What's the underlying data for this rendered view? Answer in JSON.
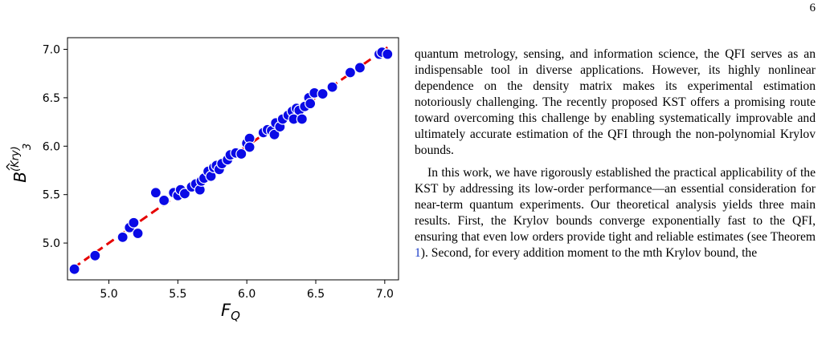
{
  "page": {
    "number": "6"
  },
  "figure": {
    "xlabel": "F",
    "xlabel_sub": "Q",
    "ylabel": "B",
    "ylabel_sub": "3",
    "ylabel_sup": "(Kry)"
  },
  "chart_data": {
    "type": "scatter",
    "title": "",
    "xlabel": "F_Q",
    "ylabel": "B̂_3^(Kry)",
    "xlim": [
      4.7,
      7.1
    ],
    "ylim": [
      4.62,
      7.12
    ],
    "xticks": [
      "5.0",
      "5.5",
      "6.0",
      "6.5",
      "7.0"
    ],
    "yticks": [
      "5.0",
      "5.5",
      "6.0",
      "6.5",
      "7.0"
    ],
    "grid": false,
    "legend": "none",
    "point_color": "#0a0ae6",
    "line_color": "#e60000",
    "reference_line": {
      "style": "dashed",
      "x": [
        4.74,
        7.02
      ],
      "y": [
        4.74,
        7.02
      ]
    },
    "points": [
      [
        4.75,
        4.73
      ],
      [
        4.9,
        4.87
      ],
      [
        5.1,
        5.06
      ],
      [
        5.15,
        5.16
      ],
      [
        5.18,
        5.21
      ],
      [
        5.21,
        5.1
      ],
      [
        5.34,
        5.52
      ],
      [
        5.4,
        5.44
      ],
      [
        5.47,
        5.52
      ],
      [
        5.5,
        5.49
      ],
      [
        5.52,
        5.55
      ],
      [
        5.55,
        5.51
      ],
      [
        5.6,
        5.58
      ],
      [
        5.63,
        5.61
      ],
      [
        5.66,
        5.55
      ],
      [
        5.67,
        5.64
      ],
      [
        5.69,
        5.67
      ],
      [
        5.72,
        5.74
      ],
      [
        5.74,
        5.69
      ],
      [
        5.76,
        5.78
      ],
      [
        5.78,
        5.8
      ],
      [
        5.8,
        5.76
      ],
      [
        5.82,
        5.82
      ],
      [
        5.86,
        5.86
      ],
      [
        5.88,
        5.91
      ],
      [
        5.92,
        5.93
      ],
      [
        5.96,
        5.92
      ],
      [
        6.0,
        6.03
      ],
      [
        6.02,
        6.08
      ],
      [
        6.02,
        5.99
      ],
      [
        6.12,
        6.14
      ],
      [
        6.15,
        6.17
      ],
      [
        6.18,
        6.16
      ],
      [
        6.2,
        6.12
      ],
      [
        6.21,
        6.24
      ],
      [
        6.24,
        6.2
      ],
      [
        6.26,
        6.28
      ],
      [
        6.3,
        6.32
      ],
      [
        6.33,
        6.36
      ],
      [
        6.34,
        6.28
      ],
      [
        6.36,
        6.39
      ],
      [
        6.38,
        6.37
      ],
      [
        6.4,
        6.28
      ],
      [
        6.42,
        6.41
      ],
      [
        6.45,
        6.5
      ],
      [
        6.46,
        6.44
      ],
      [
        6.49,
        6.55
      ],
      [
        6.55,
        6.54
      ],
      [
        6.62,
        6.61
      ],
      [
        6.75,
        6.76
      ],
      [
        6.82,
        6.81
      ],
      [
        6.96,
        6.95
      ],
      [
        6.98,
        6.97
      ],
      [
        7.02,
        6.95
      ]
    ]
  },
  "body_text": {
    "paragraph1": "quantum metrology, sensing, and information science, the QFI serves as an indispensable tool in diverse applications. However, its highly nonlinear dependence on the density matrix makes its experimental estimation notoriously challenging. The recently proposed KST offers a promising route toward overcoming this challenge by enabling systematically improvable and ultimately accurate estimation of the QFI through the non-polynomial Krylov bounds.",
    "paragraph2_a": "In this work, we have rigorously established the practical applicability of the KST by addressing its low-order performance—an essential consideration for near-term quantum experiments. Our theoretical analysis yields three main results. First, the Krylov bounds converge exponentially fast to the QFI, ensuring that even low orders provide tight and reliable estimates (see Theorem ",
    "paragraph2_ref": "1",
    "paragraph2_b": "). Second, for every addition moment to the mth Krylov bound, the"
  }
}
